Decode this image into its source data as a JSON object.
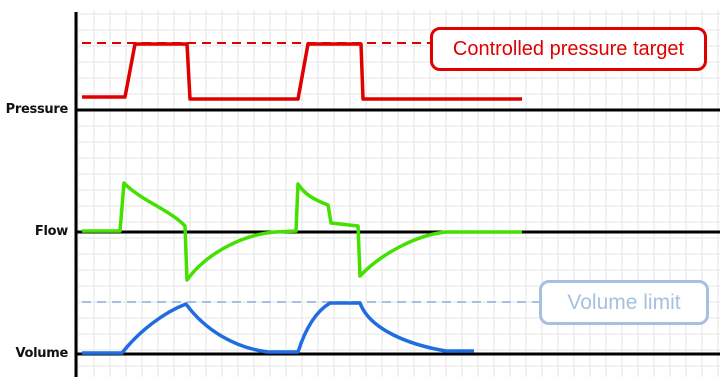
{
  "traces": {
    "pressure": {
      "label": "Pressure",
      "color": "#e10000"
    },
    "flow": {
      "label": "Flow",
      "color": "#44e000"
    },
    "volume": {
      "label": "Volume",
      "color": "#1f6de0"
    }
  },
  "annotations": {
    "pressure_target": {
      "text": "Controlled pressure target",
      "color": "#e10000"
    },
    "volume_limit": {
      "text": "Volume limit",
      "color": "#a6c0e0"
    }
  },
  "colors": {
    "grid": "#e6e6e6",
    "axis": "#000000"
  }
}
